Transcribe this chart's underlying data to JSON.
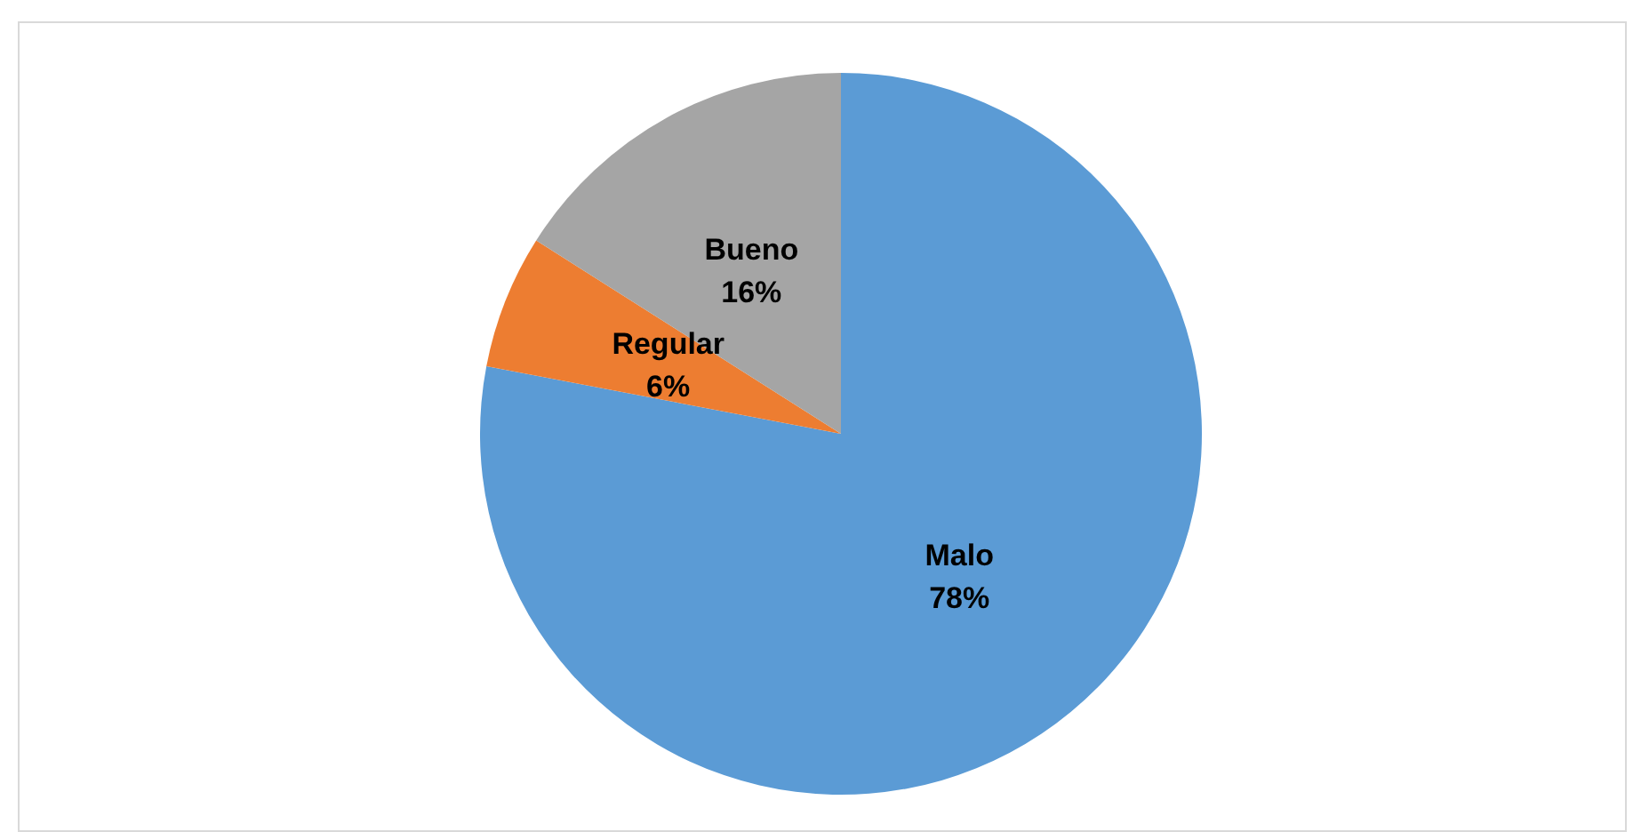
{
  "chart_data": {
    "type": "pie",
    "categories": [
      "Malo",
      "Regular",
      "Bueno"
    ],
    "values": [
      78,
      6,
      16
    ],
    "colors": [
      "#5b9bd5",
      "#ed7d31",
      "#a5a5a5"
    ],
    "value_labels": [
      "78%",
      "6%",
      "16%"
    ]
  }
}
